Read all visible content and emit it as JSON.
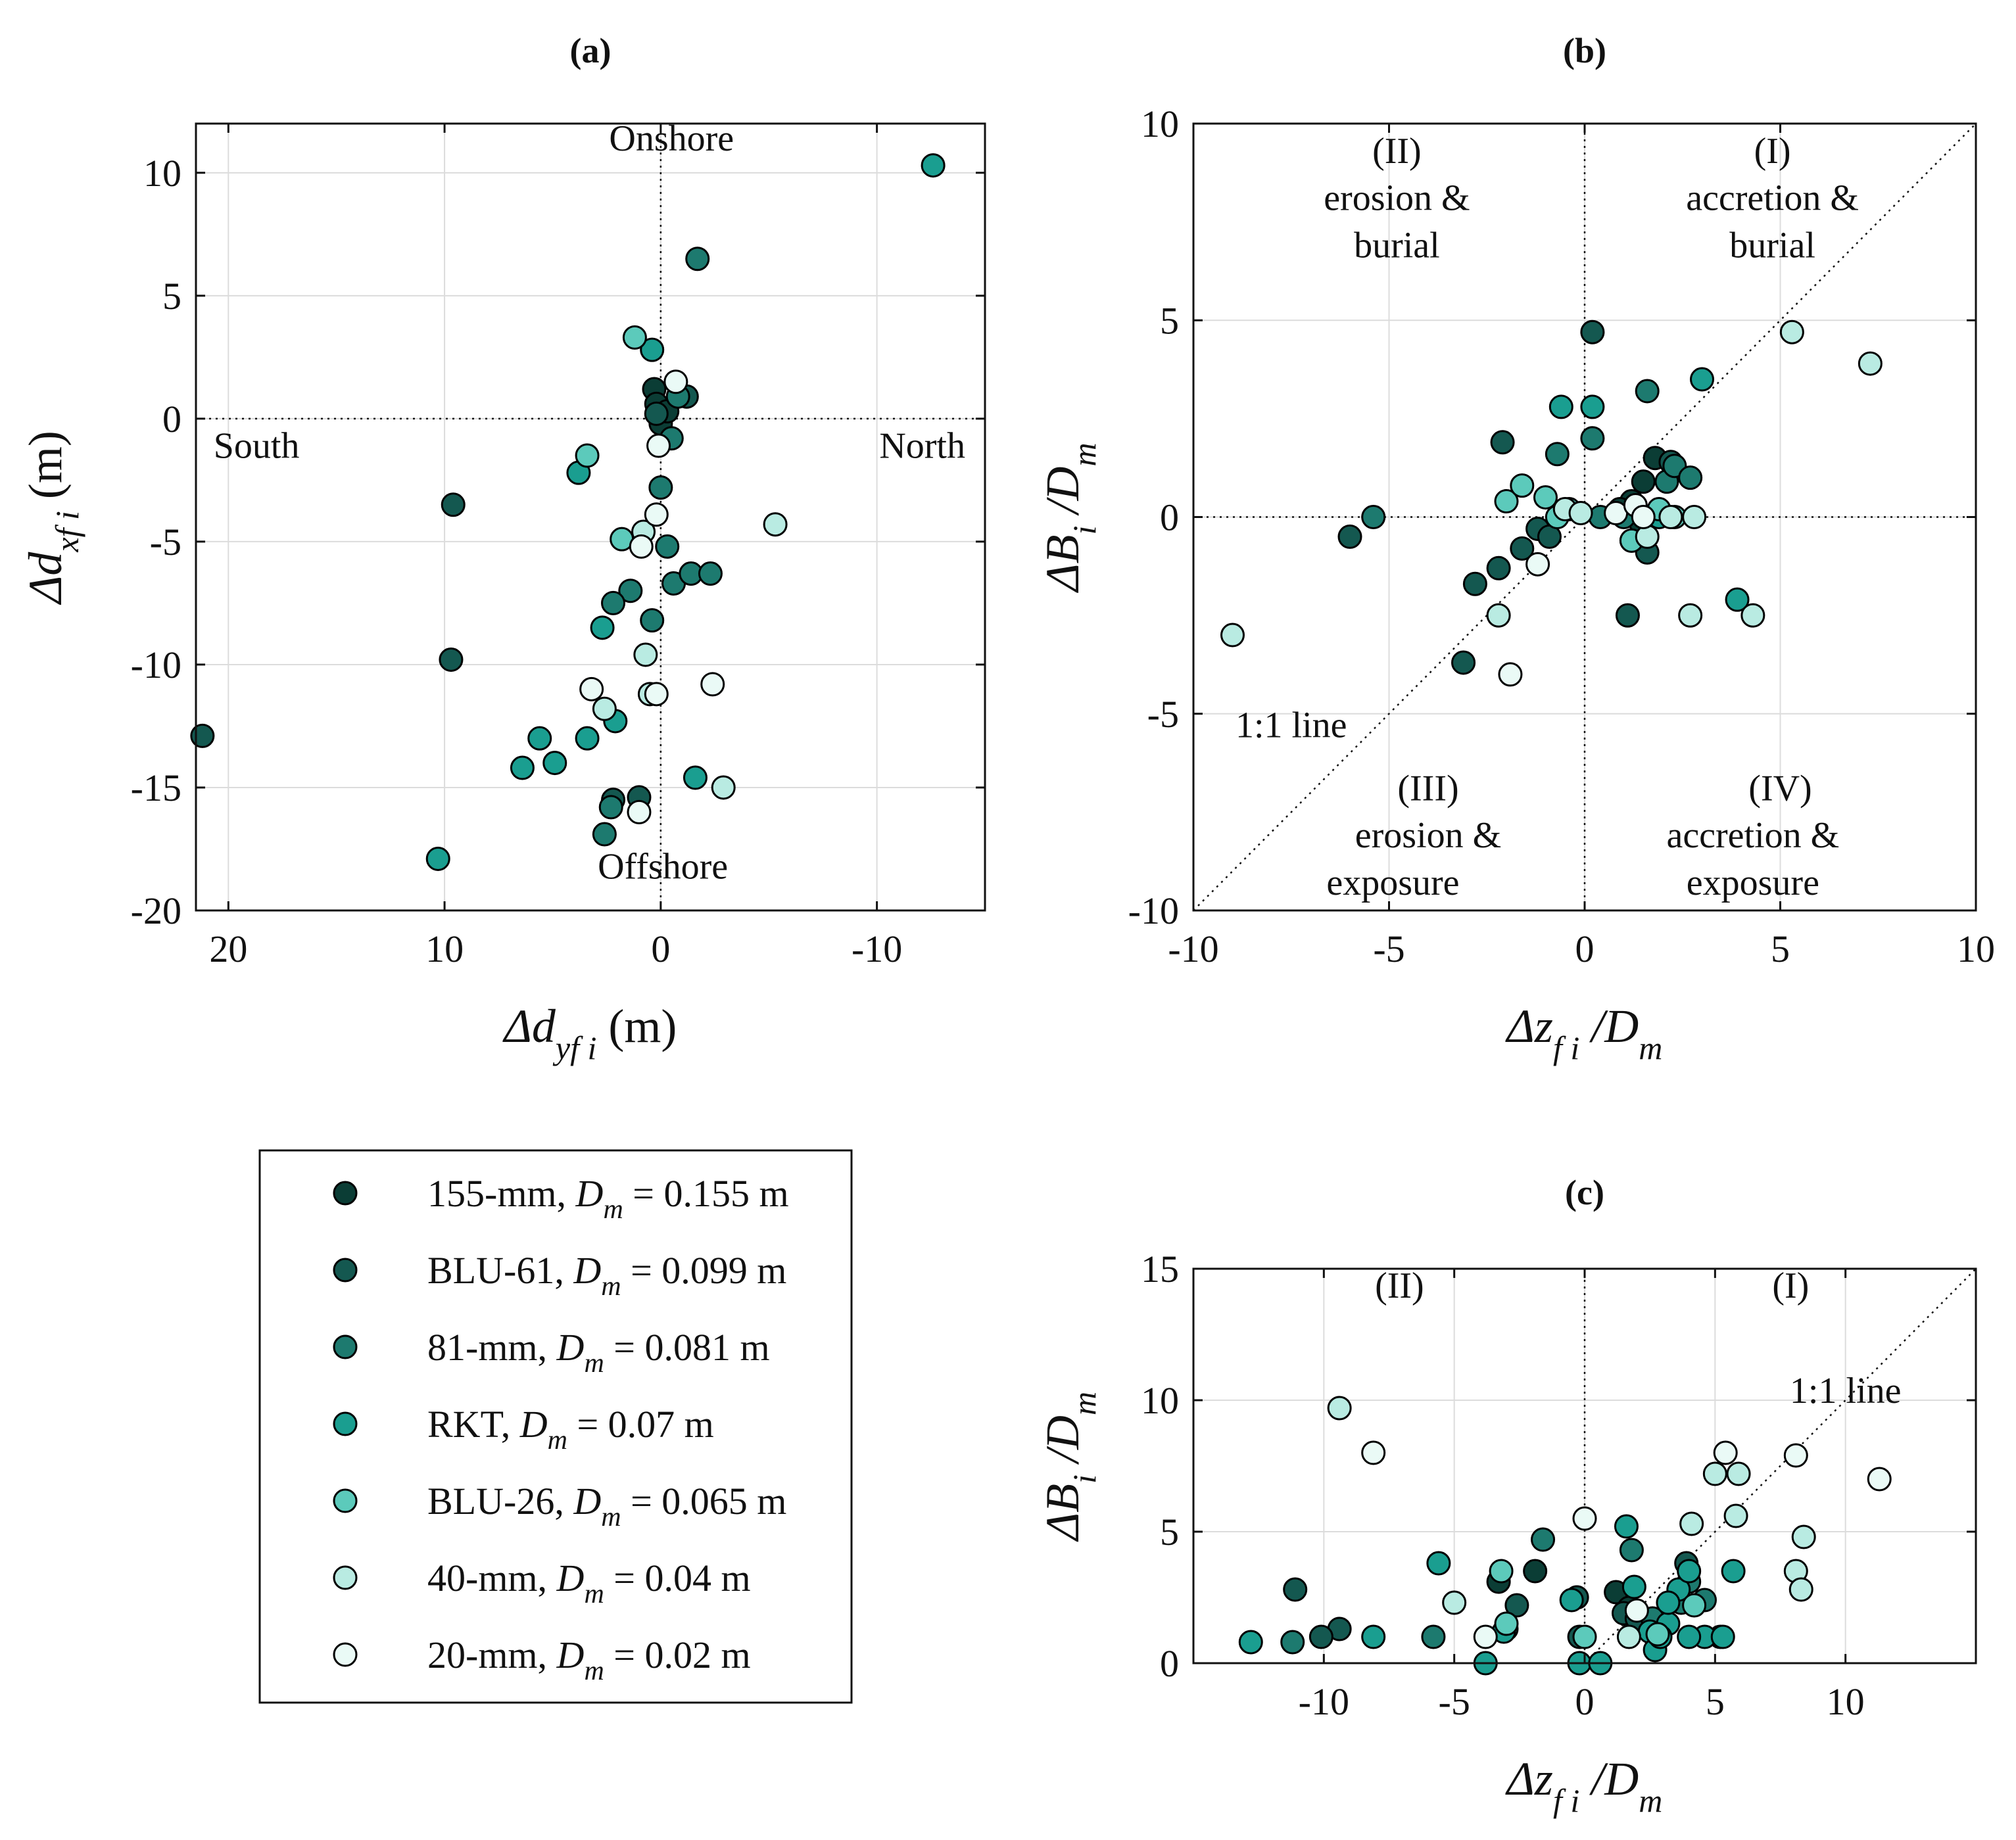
{
  "series_styles": [
    {
      "name": "155-mm",
      "label": "155-mm, ",
      "dm_value": " = 0.155 m",
      "color": "#0b3d35"
    },
    {
      "name": "BLU-61",
      "label": "BLU-61, ",
      "dm_value": " = 0.099 m",
      "color": "#145850"
    },
    {
      "name": "81-mm",
      "label": "81-mm, ",
      "dm_value": " = 0.081 m",
      "color": "#1d7a6f"
    },
    {
      "name": "RKT",
      "label": "RKT, ",
      "dm_value": " = 0.07 m",
      "color": "#1a9e90"
    },
    {
      "name": "BLU-26",
      "label": "BLU-26, ",
      "dm_value": " = 0.065 m",
      "color": "#5ccabb"
    },
    {
      "name": "40-mm",
      "label": "40-mm, ",
      "dm_value": " = 0.04 m",
      "color": "#b9ebe2"
    },
    {
      "name": "20-mm",
      "label": "20-mm, ",
      "dm_value": " = 0.02 m",
      "color": "#eafaf6"
    }
  ],
  "legend": {
    "dm_symbol": "D",
    "dm_sub": "m"
  },
  "chart_data": [
    {
      "id": "a",
      "type": "scatter",
      "title": "(a)",
      "xlabel": {
        "main": "Δd",
        "sub": "yf i",
        "unit": " (m)"
      },
      "ylabel": {
        "main": "Δd",
        "sub": "xf i",
        "unit": " (m)"
      },
      "xlim": [
        21.5,
        -15
      ],
      "ylim": [
        -20,
        12
      ],
      "xticks": [
        20,
        10,
        0,
        -10
      ],
      "xtick_labels": [
        "20",
        "10",
        "0",
        "-10"
      ],
      "yticks": [
        -20,
        -15,
        -10,
        -5,
        0,
        5,
        10
      ],
      "ytick_labels": [
        "-20",
        "-15",
        "-10",
        "-5",
        "0",
        "5",
        "10"
      ],
      "annotations": [
        {
          "text": "Onshore",
          "x": -0.5,
          "y": 10.9
        },
        {
          "text": "Offshore",
          "x": -0.1,
          "y": -18.7
        },
        {
          "text": "South",
          "x": 18.7,
          "y": -1.6
        },
        {
          "text": "North",
          "x": -12.1,
          "y": -1.6
        }
      ],
      "ref_lines": [
        {
          "x1": 0,
          "y1": -20,
          "x2": 0,
          "y2": 12
        },
        {
          "x1": 21.5,
          "y1": 0,
          "x2": -15,
          "y2": 0
        }
      ],
      "series": [
        {
          "name": "155-mm",
          "points": [
            [
              0.3,
              1.2
            ],
            [
              0.2,
              0.6
            ],
            [
              0.0,
              -0.2
            ],
            [
              -0.3,
              0.3
            ]
          ]
        },
        {
          "name": "BLU-61",
          "points": [
            [
              9.6,
              -3.5
            ],
            [
              9.7,
              -9.8
            ],
            [
              21.2,
              -12.9
            ],
            [
              2.2,
              -15.5
            ],
            [
              1.0,
              -15.4
            ],
            [
              -1.2,
              0.9
            ],
            [
              0.2,
              0.2
            ]
          ]
        },
        {
          "name": "81-mm",
          "points": [
            [
              -1.7,
              6.5
            ],
            [
              0.0,
              -2.8
            ],
            [
              1.4,
              -7.0
            ],
            [
              0.4,
              -8.2
            ],
            [
              2.2,
              -7.5
            ],
            [
              -0.6,
              -6.7
            ],
            [
              -1.4,
              -6.3
            ],
            [
              -2.3,
              -6.3
            ],
            [
              -0.3,
              -5.2
            ],
            [
              2.6,
              -16.9
            ],
            [
              2.3,
              -15.8
            ],
            [
              -0.8,
              0.9
            ],
            [
              -0.5,
              -0.8
            ]
          ]
        },
        {
          "name": "RKT",
          "points": [
            [
              -12.6,
              10.3
            ],
            [
              10.3,
              -17.9
            ],
            [
              6.4,
              -14.2
            ],
            [
              5.6,
              -13.0
            ],
            [
              4.9,
              -14.0
            ],
            [
              3.4,
              -13.0
            ],
            [
              2.1,
              -12.3
            ],
            [
              2.7,
              -8.5
            ],
            [
              3.8,
              -2.2
            ],
            [
              0.4,
              2.8
            ],
            [
              -1.6,
              -14.6
            ]
          ]
        },
        {
          "name": "BLU-26",
          "points": [
            [
              1.2,
              3.3
            ],
            [
              3.4,
              -1.5
            ],
            [
              1.8,
              -4.9
            ]
          ]
        },
        {
          "name": "40-mm",
          "points": [
            [
              -5.3,
              -4.3
            ],
            [
              -2.9,
              -15.0
            ],
            [
              2.6,
              -11.8
            ],
            [
              0.7,
              -9.6
            ],
            [
              0.5,
              -11.2
            ],
            [
              0.8,
              -4.6
            ]
          ]
        },
        {
          "name": "20-mm",
          "points": [
            [
              3.2,
              -11.0
            ],
            [
              -2.4,
              -10.8
            ],
            [
              0.2,
              -11.2
            ],
            [
              -0.7,
              1.5
            ],
            [
              0.9,
              -5.2
            ],
            [
              0.2,
              -3.9
            ],
            [
              1.0,
              -16.0
            ],
            [
              0.1,
              -1.1
            ]
          ]
        }
      ]
    },
    {
      "id": "b",
      "type": "scatter",
      "title": "(b)",
      "xlabel": {
        "main": "Δz",
        "sub": "f i",
        "unit": " /D",
        "sub2": "m"
      },
      "ylabel": {
        "main": "ΔB",
        "sub": "i",
        "unit": " /D",
        "sub2": "m"
      },
      "xlim": [
        -10,
        10
      ],
      "ylim": [
        -10,
        10
      ],
      "xticks": [
        -10,
        -5,
        0,
        5,
        10
      ],
      "xtick_labels": [
        "-10",
        "-5",
        "0",
        "5",
        "10"
      ],
      "yticks": [
        -10,
        -5,
        0,
        5,
        10
      ],
      "ytick_labels": [
        "-10",
        "-5",
        "0",
        "5",
        "10"
      ],
      "annotations": [
        {
          "text": "(II)",
          "x": -4.8,
          "y": 9.0
        },
        {
          "text": "erosion &",
          "x": -4.8,
          "y": 7.8
        },
        {
          "text": "burial",
          "x": -4.8,
          "y": 6.6
        },
        {
          "text": "(I)",
          "x": 4.8,
          "y": 9.0
        },
        {
          "text": "accretion &",
          "x": 4.8,
          "y": 7.8
        },
        {
          "text": "burial",
          "x": 4.8,
          "y": 6.6
        },
        {
          "text": "(III)",
          "x": -4.0,
          "y": -7.2
        },
        {
          "text": "erosion &",
          "x": -4.0,
          "y": -8.4
        },
        {
          "text": "exposure",
          "x": -4.9,
          "y": -9.6
        },
        {
          "text": "(IV)",
          "x": 5.0,
          "y": -7.2
        },
        {
          "text": "accretion &",
          "x": 4.3,
          "y": -8.4
        },
        {
          "text": "exposure",
          "x": 4.3,
          "y": -9.6
        },
        {
          "text": "1:1 line",
          "x": -7.5,
          "y": -5.6
        }
      ],
      "ref_lines": [
        {
          "x1": 0,
          "y1": -10,
          "x2": 0,
          "y2": 10
        },
        {
          "x1": -10,
          "y1": 0,
          "x2": 10,
          "y2": 0
        },
        {
          "x1": -10,
          "y1": -10,
          "x2": 10,
          "y2": 10
        }
      ],
      "series": [
        {
          "name": "155-mm",
          "points": [
            [
              1.8,
              1.5
            ],
            [
              1.5,
              0.9
            ],
            [
              1.2,
              0.4
            ],
            [
              0.9,
              0.2
            ],
            [
              1.4,
              -0.1
            ]
          ]
        },
        {
          "name": "BLU-61",
          "points": [
            [
              -6.0,
              -0.5
            ],
            [
              -2.1,
              1.9
            ],
            [
              -3.1,
              -3.7
            ],
            [
              -2.8,
              -1.7
            ],
            [
              -2.2,
              -1.3
            ],
            [
              -1.6,
              -0.8
            ],
            [
              -1.2,
              -0.3
            ],
            [
              -0.9,
              -0.5
            ],
            [
              1.1,
              -2.5
            ],
            [
              2.2,
              1.4
            ],
            [
              1.6,
              -0.9
            ],
            [
              0.2,
              4.7
            ]
          ]
        },
        {
          "name": "81-mm",
          "points": [
            [
              -5.4,
              0.0
            ],
            [
              -0.7,
              1.6
            ],
            [
              0.2,
              2.0
            ],
            [
              1.6,
              3.2
            ],
            [
              2.1,
              0.9
            ],
            [
              2.3,
              1.3
            ],
            [
              2.7,
              1.0
            ],
            [
              1.0,
              0.0
            ],
            [
              0.4,
              0.0
            ]
          ]
        },
        {
          "name": "RKT",
          "points": [
            [
              3.0,
              3.5
            ],
            [
              -0.6,
              2.8
            ],
            [
              0.2,
              2.8
            ],
            [
              3.9,
              -2.1
            ],
            [
              1.2,
              -0.6
            ],
            [
              1.9,
              0.0
            ]
          ]
        },
        {
          "name": "BLU-26",
          "points": [
            [
              -2.0,
              0.4
            ],
            [
              -1.6,
              0.8
            ],
            [
              -1.0,
              0.5
            ],
            [
              -0.4,
              0.2
            ],
            [
              -0.7,
              0.0
            ],
            [
              1.2,
              -0.6
            ],
            [
              1.9,
              0.2
            ],
            [
              2.3,
              0.0
            ]
          ]
        },
        {
          "name": "40-mm",
          "points": [
            [
              5.3,
              4.7
            ],
            [
              7.3,
              3.9
            ],
            [
              -9.0,
              -3.0
            ],
            [
              -2.2,
              -2.5
            ],
            [
              2.7,
              -2.5
            ],
            [
              4.3,
              -2.5
            ],
            [
              1.6,
              -0.5
            ],
            [
              2.2,
              0.0
            ],
            [
              2.8,
              0.0
            ],
            [
              -0.5,
              0.2
            ],
            [
              -0.1,
              0.1
            ]
          ]
        },
        {
          "name": "20-mm",
          "points": [
            [
              -1.9,
              -4.0
            ],
            [
              -1.2,
              -1.2
            ],
            [
              0.8,
              0.1
            ],
            [
              1.3,
              0.3
            ],
            [
              1.5,
              0.0
            ]
          ]
        }
      ]
    },
    {
      "id": "c",
      "type": "scatter",
      "title": "(c)",
      "xlabel": {
        "main": "Δz",
        "sub": "f i",
        "unit": " /D",
        "sub2": "m"
      },
      "ylabel": {
        "main": "ΔB",
        "sub": "i",
        "unit": " /D",
        "sub2": "m"
      },
      "xlim": [
        -15,
        15
      ],
      "ylim": [
        0,
        15
      ],
      "xticks": [
        -10,
        -5,
        0,
        5,
        10
      ],
      "xtick_labels": [
        "-10",
        "-5",
        "0",
        "5",
        "10"
      ],
      "yticks": [
        0,
        5,
        10,
        15
      ],
      "ytick_labels": [
        "0",
        "5",
        "10",
        "15"
      ],
      "annotations": [
        {
          "text": "(II)",
          "x": -7.1,
          "y": 13.9
        },
        {
          "text": "(I)",
          "x": 7.9,
          "y": 13.9
        },
        {
          "text": "1:1 line",
          "x": 10.0,
          "y": 9.9
        }
      ],
      "ref_lines": [
        {
          "x1": 0,
          "y1": 0,
          "x2": 0,
          "y2": 15
        },
        {
          "x1": -15,
          "y1": 0,
          "x2": 15,
          "y2": 0
        },
        {
          "x1": 0,
          "y1": 0,
          "x2": 15,
          "y2": 15
        }
      ],
      "series": [
        {
          "name": "155-mm",
          "points": [
            [
              -3.3,
              3.1
            ],
            [
              -1.9,
              3.5
            ],
            [
              1.2,
              2.7
            ],
            [
              1.7,
              2.1
            ],
            [
              1.9,
              1.6
            ]
          ]
        },
        {
          "name": "BLU-61",
          "points": [
            [
              -11.1,
              2.8
            ],
            [
              -9.4,
              1.3
            ],
            [
              -10.1,
              1.0
            ],
            [
              -2.6,
              2.2
            ],
            [
              -0.3,
              2.5
            ],
            [
              -0.2,
              1.0
            ],
            [
              1.5,
              1.9
            ],
            [
              2.0,
              1.7
            ],
            [
              3.9,
              3.8
            ]
          ]
        },
        {
          "name": "81-mm",
          "points": [
            [
              -11.2,
              0.8
            ],
            [
              -5.8,
              1.0
            ],
            [
              -3.0,
              1.3
            ],
            [
              -1.6,
              4.7
            ],
            [
              1.8,
              4.3
            ],
            [
              2.6,
              1.7
            ],
            [
              3.7,
              2.3
            ],
            [
              4.0,
              3.1
            ],
            [
              5.2,
              1.0
            ],
            [
              4.6,
              2.4
            ]
          ]
        },
        {
          "name": "RKT",
          "points": [
            [
              -12.8,
              0.8
            ],
            [
              -8.1,
              1.0
            ],
            [
              -5.6,
              3.8
            ],
            [
              -3.8,
              0.0
            ],
            [
              -3.1,
              1.2
            ],
            [
              -0.2,
              0.0
            ],
            [
              -0.5,
              2.4
            ],
            [
              1.9,
              2.9
            ],
            [
              2.5,
              1.2
            ],
            [
              3.2,
              1.5
            ],
            [
              2.7,
              0.5
            ],
            [
              2.9,
              1.0
            ],
            [
              3.6,
              2.8
            ],
            [
              4.6,
              1.0
            ],
            [
              4.0,
              1.0
            ],
            [
              5.3,
              1.0
            ],
            [
              5.7,
              3.5
            ],
            [
              4.0,
              3.5
            ],
            [
              1.6,
              5.2
            ],
            [
              0.6,
              0.0
            ],
            [
              3.2,
              2.3
            ]
          ]
        },
        {
          "name": "BLU-26",
          "points": [
            [
              -3.2,
              3.5
            ],
            [
              -3.0,
              1.5
            ],
            [
              4.2,
              2.2
            ],
            [
              2.8,
              1.1
            ],
            [
              0.0,
              1.0
            ]
          ]
        },
        {
          "name": "40-mm",
          "points": [
            [
              -9.4,
              9.7
            ],
            [
              -5.0,
              2.3
            ],
            [
              4.1,
              5.3
            ],
            [
              5.0,
              7.2
            ],
            [
              5.9,
              7.2
            ],
            [
              5.8,
              5.6
            ],
            [
              8.1,
              3.5
            ],
            [
              8.3,
              2.8
            ],
            [
              8.4,
              4.8
            ],
            [
              1.7,
              1.0
            ]
          ]
        },
        {
          "name": "20-mm",
          "points": [
            [
              -8.1,
              8.0
            ],
            [
              -3.8,
              1.0
            ],
            [
              5.4,
              8.0
            ],
            [
              8.1,
              7.9
            ],
            [
              11.3,
              7.0
            ],
            [
              0.0,
              5.5
            ],
            [
              2.0,
              2.0
            ]
          ]
        }
      ]
    }
  ]
}
